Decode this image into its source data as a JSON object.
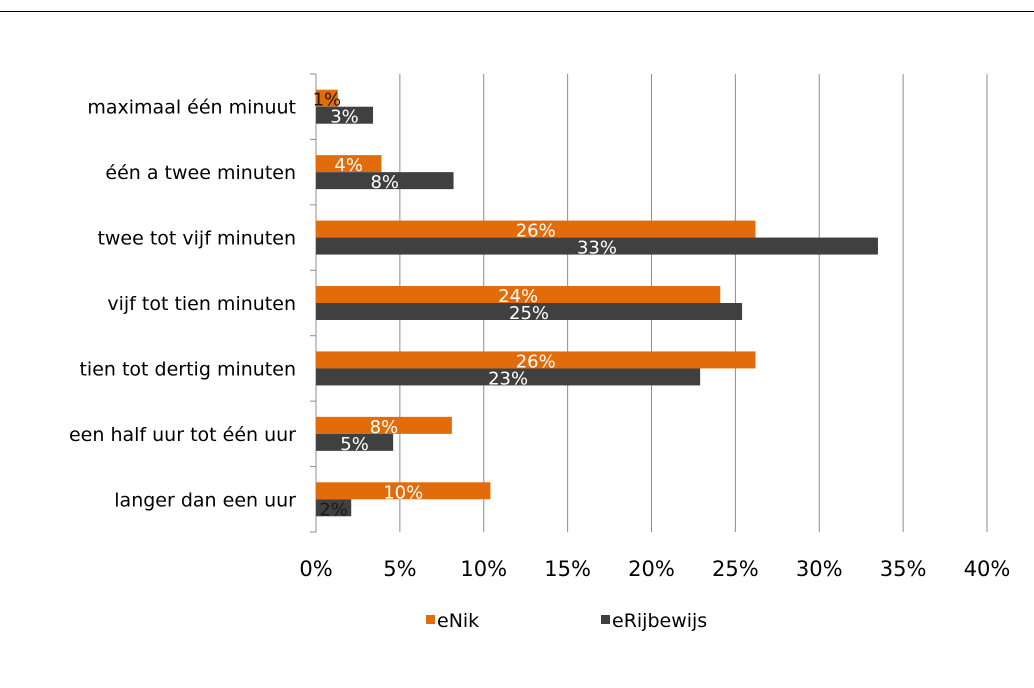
{
  "chart_data": {
    "type": "bar",
    "orientation": "horizontal",
    "categories": [
      "maximaal één minuut",
      "één a twee minuten",
      "twee tot vijf minuten",
      "vijf tot tien minuten",
      "tien tot dertig minuten",
      "een half uur tot één uur",
      "langer dan een uur"
    ],
    "series": [
      {
        "name": "eNik",
        "color": "#E36C0A",
        "values": [
          1.3,
          3.9,
          26.2,
          24.1,
          26.2,
          8.1,
          10.4
        ],
        "labels": [
          "1%",
          "4%",
          "26%",
          "24%",
          "26%",
          "8%",
          "10%"
        ]
      },
      {
        "name": "eRijbewijs",
        "color": "#404040",
        "values": [
          3.4,
          8.2,
          33.5,
          25.4,
          22.9,
          4.6,
          2.1
        ],
        "labels": [
          "3%",
          "8%",
          "33%",
          "25%",
          "23%",
          "5%",
          "2%"
        ]
      }
    ],
    "xlim": [
      0,
      40
    ],
    "xticks": [
      "0%",
      "5%",
      "10%",
      "15%",
      "20%",
      "25%",
      "30%",
      "35%",
      "40%"
    ],
    "grid": "vertical",
    "legend": "bottom",
    "title": "",
    "xlabel": "",
    "ylabel": ""
  }
}
